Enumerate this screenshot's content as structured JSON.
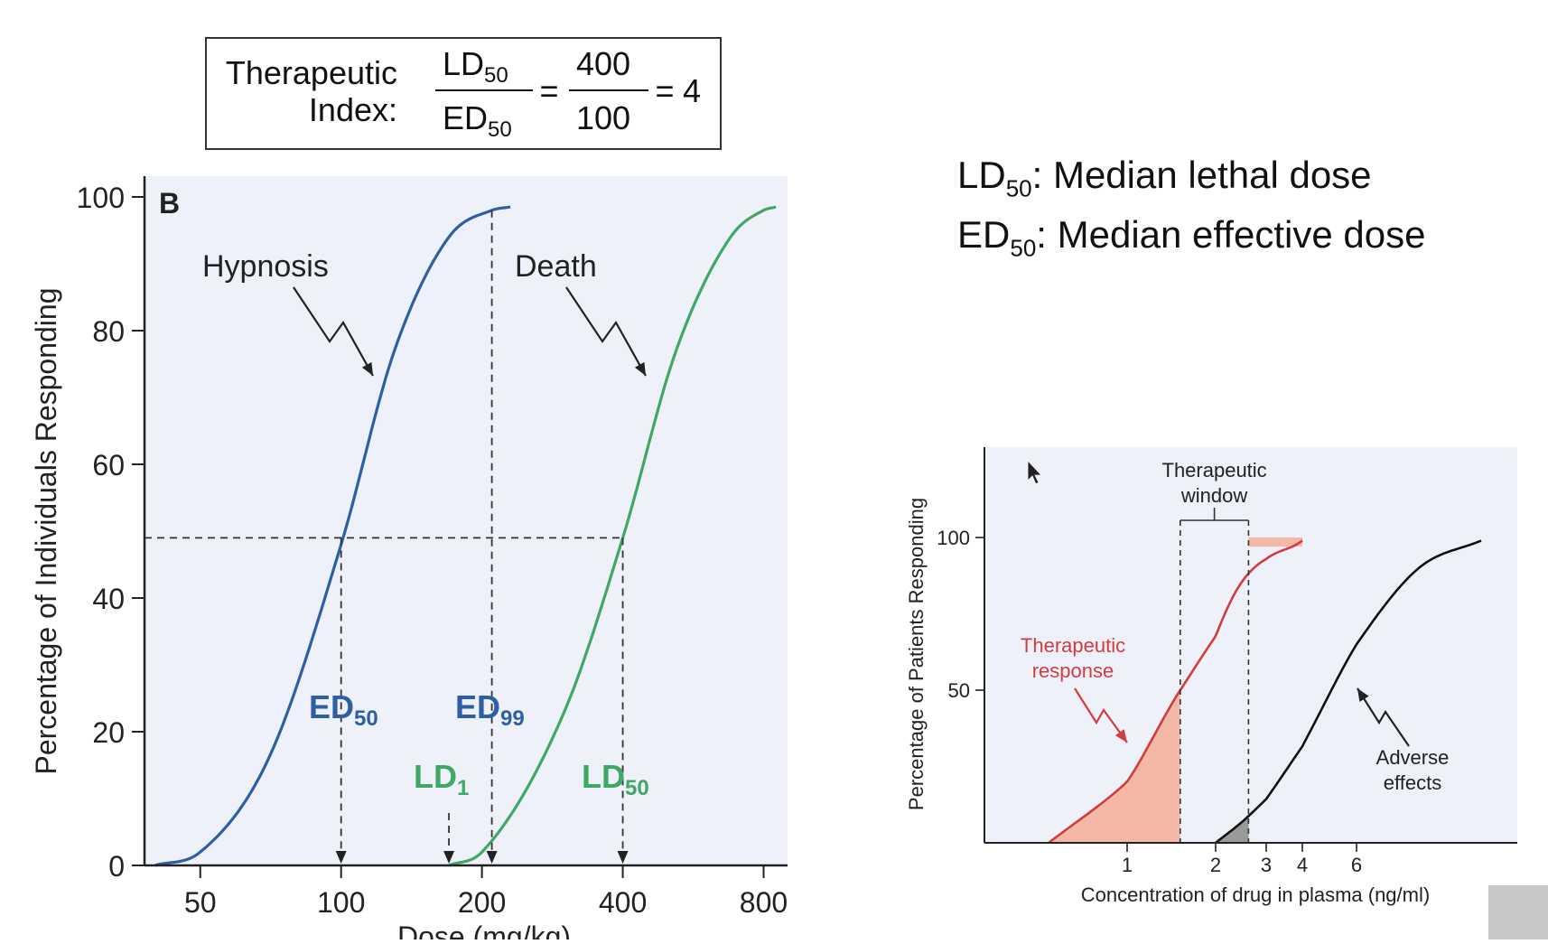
{
  "therapeutic_index_box": {
    "label_line1": "Therapeutic",
    "label_line2": "Index:",
    "num_main": "LD",
    "num_sub": "50",
    "den_main": "ED",
    "den_sub": "50",
    "eq1": "=",
    "num_value": "400",
    "den_value": "100",
    "eq2": "=",
    "result": "4"
  },
  "definitions": [
    {
      "abbr": "LD",
      "sub": "50",
      "text": ": Median lethal dose"
    },
    {
      "abbr": "ED",
      "sub": "50",
      "text": ": Median effective dose"
    }
  ],
  "colors": {
    "hypnosis": "#2e5fa3",
    "death": "#3fa866",
    "therapeutic": "#d23c3c",
    "adverse": "#111111",
    "panel_bg": "#eef1f9",
    "fill_red": "#f4b9a6",
    "fill_gray": "#9a9a9a"
  },
  "chart_data": [
    {
      "type": "line",
      "panel_label": "B",
      "ylabel": "Percentage of Individuals Responding",
      "xlabel": "Dose (mg/kg)",
      "x_scale": "log",
      "xlim": [
        38,
        900
      ],
      "ylim": [
        0,
        100
      ],
      "x_ticks": [
        50,
        100,
        200,
        400,
        800
      ],
      "y_ticks": [
        0,
        20,
        40,
        60,
        80,
        100
      ],
      "series": [
        {
          "name": "Hypnosis",
          "x": [
            40,
            50,
            70,
            100,
            130,
            170,
            210,
            230
          ],
          "y": [
            0,
            2,
            16,
            48,
            77,
            94,
            98,
            98.5
          ]
        },
        {
          "name": "Death",
          "x": [
            170,
            200,
            300,
            400,
            520,
            680,
            800,
            850
          ],
          "y": [
            0,
            2,
            23,
            49,
            77,
            94,
            98,
            98.5
          ]
        }
      ],
      "reference_lines": {
        "horizontal_y": 49,
        "vertical_x": [
          100,
          210,
          400
        ]
      },
      "annotations": [
        {
          "text": "Hypnosis",
          "series": "Hypnosis"
        },
        {
          "text": "Death",
          "series": "Death"
        },
        {
          "main": "ED",
          "sub": "50",
          "x": 100,
          "series": "Hypnosis"
        },
        {
          "main": "ED",
          "sub": "99",
          "x": 210,
          "series": "Hypnosis"
        },
        {
          "main": "LD",
          "sub": "1",
          "x": 170,
          "series": "Death"
        },
        {
          "main": "LD",
          "sub": "50",
          "x": 400,
          "series": "Death"
        }
      ]
    },
    {
      "type": "line",
      "ylabel": "Percentage of Patients Responding",
      "xlabel": "Concentration of drug in plasma (ng/ml)",
      "x_ticks": [
        "1",
        "2",
        "3",
        "4",
        "6"
      ],
      "y_ticks": [
        50,
        100
      ],
      "series": [
        {
          "name": "Therapeutic response",
          "x": [
            0.45,
            1.0,
            1.6,
            2.5,
            4.0
          ],
          "y": [
            0,
            20,
            50,
            85,
            99
          ]
        },
        {
          "name": "Adverse effects",
          "x": [
            2.0,
            2.6,
            4.2,
            6.0,
            8.0,
            10.0
          ],
          "y": [
            0,
            8,
            35,
            65,
            90,
            99
          ]
        }
      ],
      "therapeutic_window": {
        "label_line1": "Therapeutic",
        "label_line2": "window",
        "x_range": [
          1.6,
          2.65
        ]
      },
      "annotations": [
        {
          "line1": "Therapeutic",
          "line2": "response",
          "series": "Therapeutic response"
        },
        {
          "line1": "Adverse",
          "line2": "effects",
          "series": "Adverse effects"
        }
      ]
    }
  ]
}
